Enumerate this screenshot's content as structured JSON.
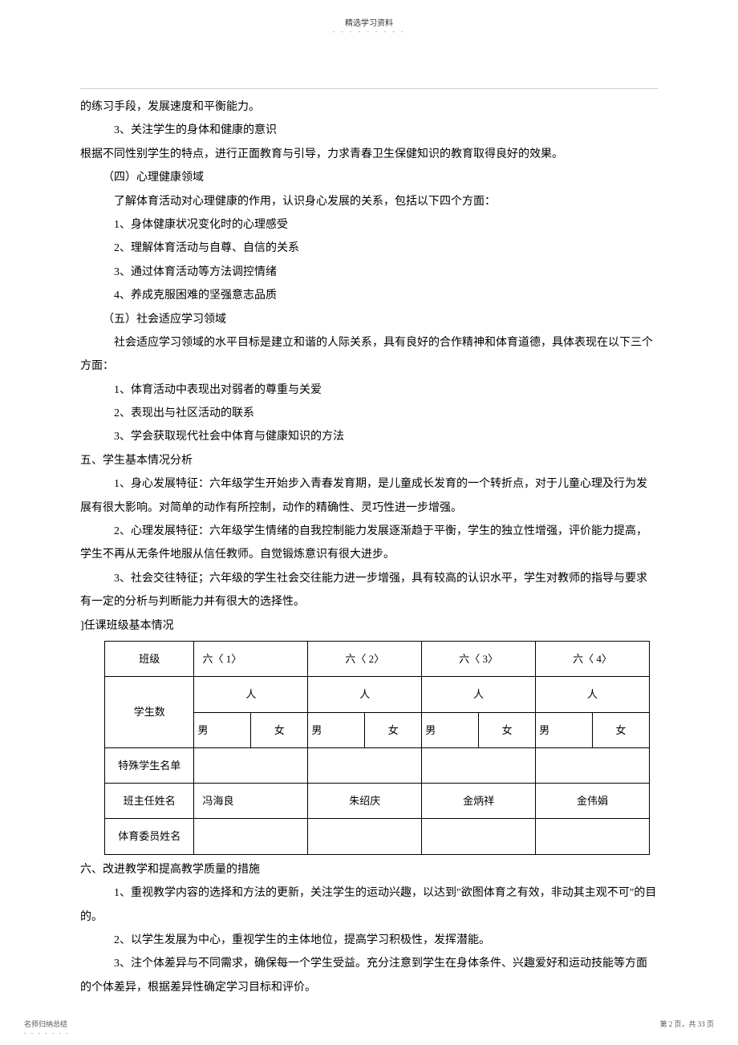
{
  "header": {
    "title": "精选学习资料",
    "dots": "- - - - - - - - -"
  },
  "paragraphs": {
    "p1": "的练习手段，发展速度和平衡能力。",
    "p2": "3、关注学生的身体和健康的意识",
    "p3": "根据不同性别学生的特点，进行正面教育与引导，力求青春卫生保健知识的教育取得良好的效果。",
    "p4": "（四）心理健康领域",
    "p5": "了解体育活动对心理健康的作用，认识身心发展的关系，包括以下四个方面：",
    "p6": "1、身体健康状况变化时的心理感受",
    "p7": "2、理解体育活动与自尊、自信的关系",
    "p8": "3、通过体育活动等方法调控情绪",
    "p9": "4、养成克服困难的坚强意志品质",
    "p10": "（五）社会适应学习领域",
    "p11": "社会适应学习领域的水平目标是建立和谐的人际关系，具有良好的合作精神和体育道德，具体表现在以下三个方面：",
    "p12": "1、体育活动中表现出对弱者的尊重与关爱",
    "p13": "2、表现出与社区活动的联系",
    "p14": "3、学会获取现代社会中体育与健康知识的方法",
    "p15": "五、学生基本情况分析",
    "p16": "1、身心发展特征：六年级学生开始步入青春发育期，是儿童成长发育的一个转折点，对于儿童心理及行为发展有很大影响。对简单的动作有所控制，动作的精确性、灵巧性进一步增强。",
    "p17": "2、心理发展特征：六年级学生情绪的自我控制能力发展逐渐趋于平衡，学生的独立性增强，评价能力提高，学生不再从无条件地服从信任教师。自觉锻炼意识有很大进步。",
    "p18": "3、社会交往特征；六年级的学生社会交往能力进一步增强，具有较高的认识水平，学生对教师的指导与要求有一定的分析与判断能力并有很大的选择性。",
    "p19": "]任课班级基本情况",
    "p20": "六、改进教学和提高教学质量的措施",
    "p21": "1、重视教学内容的选择和方法的更新，关注学生的运动兴趣，以达到\"欲图体育之有效，非动其主观不可\"的目的。",
    "p22": "2、以学生发展为中心，重视学生的主体地位，提高学习积极性，发挥潜能。",
    "p23": "3、注个体差异与不同需求，确保每一个学生受益。充分注意到学生在身体条件、兴趣爱好和运动技能等方面的个体差异，根据差异性确定学习目标和评价。"
  },
  "table": {
    "row_class": "班级",
    "class1": "六〈 1〉",
    "class2": "六〈 2〉",
    "class3": "六〈 3〉",
    "class4": "六〈 4〉",
    "row_students": "学生数",
    "people": "人",
    "male": "男",
    "female": "女",
    "row_special": "特殊学生名单",
    "row_teacher": "班主任姓名",
    "teacher1": "冯海良",
    "teacher2": "朱绍庆",
    "teacher3": "金炳祥",
    "teacher4": "金伟娟",
    "row_pe": "体育委员姓名"
  },
  "footer": {
    "left": "名师归纳总结",
    "left_dots": "- - - - - - -",
    "right": "第 2 页，共 33 页"
  }
}
